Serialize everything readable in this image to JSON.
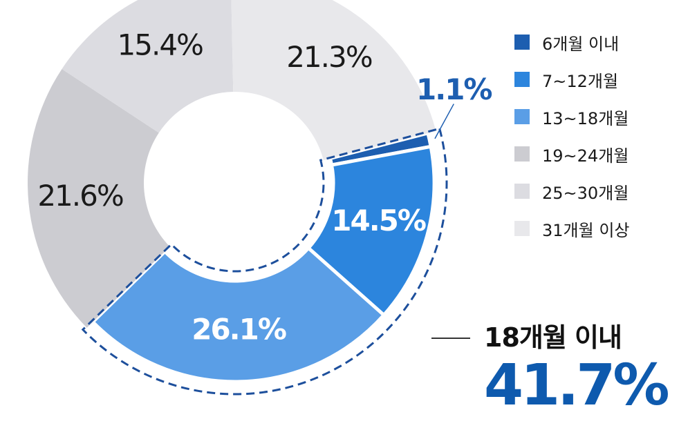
{
  "chart_data": {
    "type": "pie",
    "style": "donut",
    "categories": [
      "6개월 이내",
      "7~12개월",
      "13~18개월",
      "19~24개월",
      "25~30개월",
      "31개월 이상"
    ],
    "values": [
      1.1,
      14.5,
      26.1,
      21.6,
      15.4,
      21.3
    ],
    "value_labels": [
      "1.1%",
      "14.5%",
      "26.1%",
      "21.6%",
      "15.4%",
      "21.3%"
    ],
    "colors": [
      "#1d5eb0",
      "#2c85dd",
      "#5a9ee6",
      "#ccccd1",
      "#dcdce1",
      "#e8e8eb"
    ],
    "label_colors": [
      "#1d5eb0",
      "#ffffff",
      "#ffffff",
      "#1a1a1a",
      "#1a1a1a",
      "#1a1a1a"
    ],
    "highlighted_categories": [
      "6개월 이내",
      "7~12개월",
      "13~18개월"
    ],
    "legend_position": "top-right"
  },
  "callout": {
    "title": "18개월 이내",
    "value": "41.7%"
  }
}
